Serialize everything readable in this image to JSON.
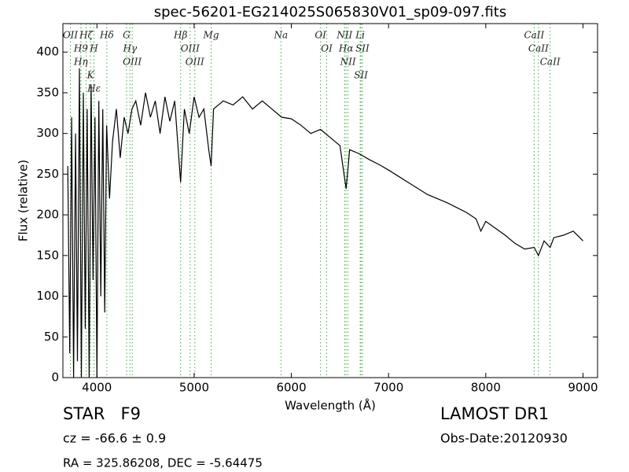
{
  "chart_data": {
    "type": "line",
    "title": "spec-56201-EG214025S065830V01_sp09-097.fits",
    "xlabel": "Wavelength (Å)",
    "ylabel": "Flux (relative)",
    "xlim": [
      3650,
      9150
    ],
    "ylim": [
      0,
      435
    ],
    "xticks": [
      4000,
      5000,
      6000,
      7000,
      8000,
      9000
    ],
    "yticks": [
      0,
      50,
      100,
      150,
      200,
      250,
      300,
      350,
      400
    ],
    "color": "#000000",
    "line_color": "#3cb043",
    "x": [
      3700,
      3720,
      3740,
      3760,
      3780,
      3800,
      3820,
      3840,
      3860,
      3880,
      3900,
      3920,
      3940,
      3960,
      3980,
      4000,
      4020,
      4040,
      4060,
      4080,
      4100,
      4130,
      4160,
      4200,
      4240,
      4280,
      4320,
      4360,
      4400,
      4450,
      4500,
      4550,
      4600,
      4650,
      4700,
      4750,
      4800,
      4861,
      4900,
      4950,
      5000,
      5050,
      5100,
      5150,
      5175,
      5200,
      5300,
      5400,
      5500,
      5600,
      5700,
      5800,
      5900,
      6000,
      6100,
      6200,
      6300,
      6400,
      6500,
      6563,
      6600,
      6700,
      6800,
      6900,
      7000,
      7200,
      7400,
      7600,
      7800,
      7900,
      7950,
      8000,
      8200,
      8300,
      8400,
      8498,
      8542,
      8600,
      8662,
      8700,
      8800,
      8900,
      9000
    ],
    "values": [
      260,
      30,
      320,
      0,
      300,
      20,
      380,
      0,
      350,
      60,
      330,
      0,
      360,
      120,
      320,
      0,
      340,
      100,
      330,
      80,
      310,
      220,
      290,
      330,
      270,
      320,
      300,
      330,
      340,
      310,
      350,
      320,
      340,
      300,
      345,
      315,
      340,
      240,
      330,
      300,
      345,
      320,
      330,
      280,
      260,
      330,
      340,
      335,
      345,
      330,
      340,
      330,
      320,
      318,
      310,
      300,
      305,
      295,
      285,
      232,
      280,
      275,
      268,
      262,
      255,
      240,
      225,
      215,
      203,
      195,
      180,
      192,
      175,
      165,
      158,
      160,
      150,
      168,
      160,
      172,
      175,
      180,
      168
    ],
    "lines": [
      {
        "label": "OII",
        "x": 3727
      },
      {
        "label": "H9",
        "x": 3835
      },
      {
        "label": "Hη",
        "x": 3835
      },
      {
        "label": "Hζ",
        "x": 3889
      },
      {
        "label": "K",
        "x": 3934
      },
      {
        "label": "H",
        "x": 3969
      },
      {
        "label": "Hε",
        "x": 3970
      },
      {
        "label": "Hδ",
        "x": 4102
      },
      {
        "label": "G",
        "x": 4305
      },
      {
        "label": "Hγ",
        "x": 4340
      },
      {
        "label": "OIII",
        "x": 4363
      },
      {
        "label": "Hβ",
        "x": 4861
      },
      {
        "label": "OIII",
        "x": 4959
      },
      {
        "label": "OIII",
        "x": 5007
      },
      {
        "label": "Mg",
        "x": 5175
      },
      {
        "label": "Na",
        "x": 5893
      },
      {
        "label": "OI",
        "x": 6300
      },
      {
        "label": "OI",
        "x": 6364
      },
      {
        "label": "NII",
        "x": 6548
      },
      {
        "label": "Hα",
        "x": 6563
      },
      {
        "label": "NII",
        "x": 6583
      },
      {
        "label": "Li",
        "x": 6708
      },
      {
        "label": "SII",
        "x": 6716
      },
      {
        "label": "SII",
        "x": 6731
      },
      {
        "label": "CaII",
        "x": 8498
      },
      {
        "label": "CaII",
        "x": 8542
      },
      {
        "label": "CaII",
        "x": 8662
      }
    ],
    "annotations": [
      "STAR   F9",
      "cz = -66.6 ± 0.9",
      "RA = 325.86208, DEC = -5.64475",
      "LAMOST DR1",
      "Obs-Date:20120930"
    ]
  }
}
